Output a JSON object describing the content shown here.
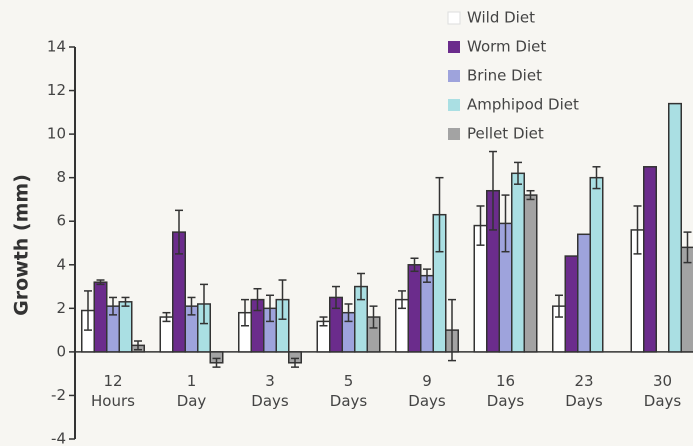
{
  "chart_data": {
    "type": "bar",
    "y_label": "Growth (mm)",
    "categories": [
      "12 Hours",
      "1 Day",
      "3 Days",
      "5 Days",
      "9 Days",
      "16 Days",
      "23 Days",
      "30 Days"
    ],
    "series": [
      {
        "name": "Wild Diet",
        "color": "#ffffff",
        "values": [
          1.9,
          1.6,
          1.8,
          1.4,
          2.4,
          5.8,
          2.1,
          5.6
        ],
        "errors": [
          0.9,
          0.2,
          0.6,
          0.2,
          0.4,
          0.9,
          0.5,
          1.1
        ]
      },
      {
        "name": "Worm Diet",
        "color": "#6b2c8c",
        "values": [
          3.2,
          5.5,
          2.4,
          2.5,
          4.0,
          7.4,
          4.4,
          8.5
        ],
        "errors": [
          0.1,
          1.0,
          0.5,
          0.5,
          0.3,
          1.8,
          null,
          null
        ]
      },
      {
        "name": "Brine Diet",
        "color": "#9ea3dc",
        "values": [
          2.1,
          2.1,
          2.0,
          1.8,
          3.5,
          5.9,
          5.4,
          null
        ],
        "errors": [
          0.4,
          0.4,
          0.6,
          0.4,
          0.3,
          1.3,
          null,
          null
        ]
      },
      {
        "name": "Amphipod Diet",
        "color": "#aadfe3",
        "values": [
          2.3,
          2.2,
          2.4,
          3.0,
          6.3,
          8.2,
          8.0,
          11.4
        ],
        "errors": [
          0.2,
          0.9,
          0.9,
          0.6,
          1.7,
          0.5,
          0.5,
          null
        ]
      },
      {
        "name": "Pellet Diet",
        "color": "#a3a3a3",
        "values": [
          0.3,
          -0.5,
          -0.5,
          1.6,
          1.0,
          7.2,
          null,
          4.8
        ],
        "errors": [
          0.2,
          0.2,
          0.2,
          0.5,
          1.4,
          0.2,
          null,
          0.7
        ]
      }
    ],
    "ylim": [
      -4,
      14
    ],
    "yticks": [
      -4,
      -2,
      0,
      2,
      4,
      6,
      8,
      10,
      12,
      14
    ],
    "legend": "top-right"
  }
}
